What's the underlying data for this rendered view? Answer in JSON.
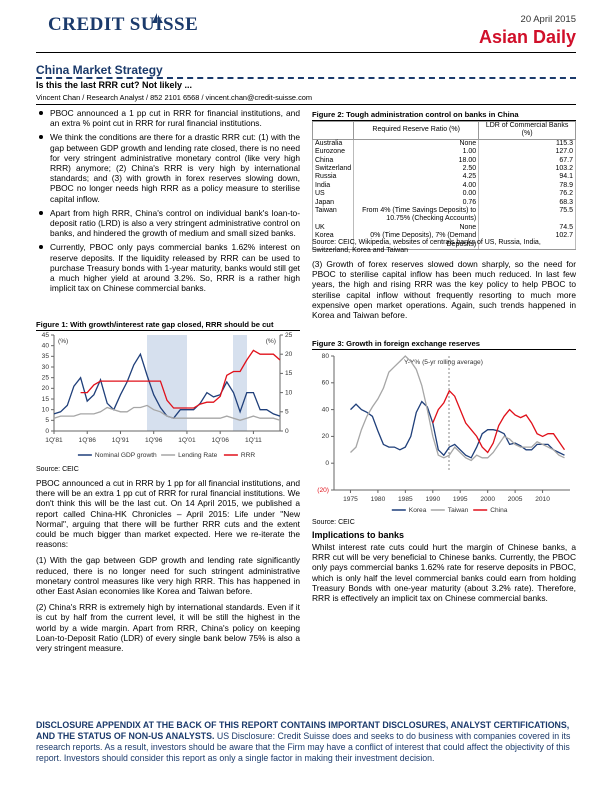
{
  "header": {
    "date": "20 April 2015",
    "brand": "CREDIT SUISSE",
    "publication": "Asian Daily"
  },
  "article": {
    "section": "China Market Strategy",
    "headline": "Is this the last RRR cut? Not likely ...",
    "byline": "Vincent Chan / Research Analyst / 852 2101 6568 / vincent.chan@credit-suisse.com",
    "bullets": [
      "PBOC announced a 1 pp cut in RRR for financial institutions, and an extra % point cut in RRR for rural financial institutions.",
      "We think the conditions are there for a drastic RRR cut: (1) with the gap between GDP growth and lending rate closed, there is no need for very stringent administrative monetary control (like very high RRR) anymore; (2) China's RRR is very high by international standards; and (3) with growth in forex reserves slowing down, PBOC no longer needs high RRR as a policy measure to sterilise capital inflow.",
      "Apart from high RRR, China's control on individual bank's loan-to-deposit ratio (LRD) is also a very stringent administrative control on banks, and hindered the growth of medium and small sized banks.",
      "Currently, PBOC only pays commercial banks 1.62% interest on reserve deposits. If the liquidity released by RRR can be used to purchase Treasury bonds with 1-year maturity, banks would still get a much higher yield at around 3.2%. So, RRR is a rather high implicit tax on Chinese commercial banks."
    ],
    "paragraphs_left": [
      "PBOC announced a cut in RRR by 1 pp for all financial institutions, and there will be an extra 1 pp cut of RRR for rural financial institutions. We don't think this will be the last cut. On 14 April 2015, we published a report called China-HK Chronicles – April 2015: Life under \"New Normal\", arguing that there will be further RRR cuts and the extent could be much bigger than market expected. Here we re-iterate the reasons:",
      "(1) With the gap between GDP growth and lending rate significantly reduced, there is no longer need for such stringent administrative monetary control measures like very high RRR. This has happened in other East Asian economies like Korea and Taiwan before.",
      "(2) China's RRR is extremely high by international standards. Even if it is cut by half from the current level, it will be still the highest in the world by a wide margin. Apart from RRR, China's policy on keeping Loan-to-Deposit Ratio (LDR) of every single bank below 75% is also a very stringent measure."
    ],
    "paragraph_right": "(3) Growth of forex reserves slowed down sharply, so the need for PBOC to sterilise capital inflow has been much reduced. In last few years, the high and rising RRR was the key policy to help PBOC to sterilise capital inflow without frequently resorting to much more expensive open market operations. Again, such trends happened in Korea and Taiwan before.",
    "implications_heading": "Implications to banks",
    "implications_text": "Whilst interest rate cuts could hurt the margin of Chinese banks, a RRR cut will be very beneficial to Chinese banks. Currently, the PBOC only pays commercial banks 1.62% rate for reserve deposits in PBOC, which is only half the level commercial banks could earn from holding Treasury Bonds with one-year maturity (about 3.2% rate). Therefore, RRR is effectively an implicit tax on Chinese commercial banks."
  },
  "figures": [
    {
      "title": "Figure 1: With growth/interest rate gap closed, RRR should be cut",
      "source": "Source: CEIC",
      "chart_data": {
        "type": "line",
        "ylabel": "(%)",
        "y2label": "(%)",
        "categories": [
          "1Q'81",
          null,
          null,
          null,
          null,
          "1Q'86",
          null,
          null,
          null,
          null,
          "1Q'91",
          null,
          null,
          null,
          null,
          "1Q'96",
          null,
          null,
          null,
          null,
          "1Q'01",
          null,
          null,
          null,
          null,
          "1Q'06",
          null,
          null,
          null,
          null,
          "1Q'11",
          null,
          null,
          null,
          null
        ],
        "series": [
          {
            "name": "Nominal GDP growth",
            "color": "#1f3f7a",
            "values": [
              8,
              9,
              12,
              21,
              25,
              14,
              17,
              24,
              13,
              10,
              17,
              23,
              31,
              36,
              26,
              17,
              11,
              7,
              6,
              10,
              10,
              10,
              13,
              18,
              16,
              17,
              23,
              18,
              9,
              18,
              18,
              10,
              10,
              8,
              7
            ]
          },
          {
            "name": "Lending Rate",
            "color": "#a6a6a6",
            "values": [
              6,
              7,
              7,
              7,
              8,
              8,
              8,
              9,
              11,
              10,
              9,
              9,
              11,
              11,
              12,
              10,
              9,
              7,
              6,
              6,
              6,
              6,
              6,
              6,
              6,
              6,
              7,
              6,
              5,
              6,
              7,
              6,
              6,
              6,
              5
            ]
          },
          {
            "name": "RRR",
            "color": "#e0101a",
            "axis": "y2",
            "values": [
              null,
              null,
              null,
              null,
              10,
              10,
              12,
              13,
              13,
              13,
              13,
              13,
              13,
              13,
              13,
              13,
              13,
              8,
              6,
              6,
              6,
              6,
              7,
              7.5,
              7.5,
              9,
              14.5,
              15.5,
              15.5,
              18.5,
              21,
              20,
              20,
              20,
              18.5
            ]
          }
        ],
        "ylim": [
          0,
          45
        ],
        "yticks": [
          0,
          5,
          10,
          15,
          20,
          25,
          30,
          35,
          40,
          45
        ],
        "y2lim": [
          0,
          25
        ],
        "y2ticks": [
          0,
          5,
          10,
          15,
          20,
          25
        ],
        "legend": "bottom"
      }
    },
    {
      "title": "Figure 2: Tough administration control on banks in China",
      "source": "Source: CEIC, Wikipedia, websites of centrals banks of US, Russia, India, Switzerland, Korea and Taiwan",
      "table": {
        "header": [
          "",
          "Required Reserve Ratio (%)",
          "LDR of Commercial Banks (%)"
        ],
        "rows": [
          [
            "Australia",
            "None",
            "115.3"
          ],
          [
            "Eurozone",
            "1.00",
            "127.0"
          ],
          [
            "China",
            "18.00",
            "67.7"
          ],
          [
            "Switzerland",
            "2.50",
            "103.2"
          ],
          [
            "Russia",
            "4.25",
            "94.1"
          ],
          [
            "India",
            "4.00",
            "78.9"
          ],
          [
            "US",
            "0.00",
            "76.2"
          ],
          [
            "Japan",
            "0.76",
            "68.3"
          ],
          [
            "Taiwan",
            "From 4% (Time Savings Deposits) to 10.75% (Checking Accounts)",
            "75.5"
          ],
          [
            "UK",
            "None",
            "74.5"
          ],
          [
            "Korea",
            "0% (Time Deposits), 7% (Demand Deposits)",
            "102.7"
          ]
        ]
      }
    },
    {
      "title": "Figure 3: Growth in foreign exchange reserves",
      "source": "Source: CEIC",
      "chart_data": {
        "type": "line",
        "annotation": "Y-Y% (5-yr rolling average)",
        "x": [
          1975,
          1976,
          1977,
          1978,
          1979,
          1980,
          1981,
          1982,
          1983,
          1984,
          1985,
          1986,
          1987,
          1988,
          1989,
          1990,
          1991,
          1992,
          1993,
          1994,
          1995,
          1996,
          1997,
          1998,
          1999,
          2000,
          2001,
          2002,
          2003,
          2004,
          2005,
          2006,
          2007,
          2008,
          2009,
          2010,
          2011,
          2012,
          2013,
          2014
        ],
        "series": [
          {
            "name": "Korea",
            "color": "#1f3f7a",
            "values": [
              40,
              44,
              40,
              38,
              35,
              24,
              14,
              12,
              12,
              10,
              12,
              20,
              38,
              46,
              42,
              30,
              10,
              6,
              12,
              14,
              10,
              6,
              4,
              12,
              22,
              25,
              25,
              24,
              22,
              14,
              15,
              13,
              10,
              10,
              14,
              14,
              14,
              10,
              8,
              6
            ]
          },
          {
            "name": "Taiwan",
            "color": "#a6a6a6",
            "values": [
              8,
              12,
              25,
              35,
              42,
              48,
              56,
              68,
              72,
              76,
              80,
              76,
              70,
              58,
              40,
              20,
              6,
              4,
              6,
              12,
              8,
              4,
              2,
              6,
              4,
              4,
              8,
              14,
              20,
              18,
              14,
              12,
              12,
              12,
              16,
              14,
              12,
              10,
              6,
              4
            ]
          },
          {
            "name": "China",
            "color": "#e0101a",
            "values": [
              null,
              null,
              null,
              null,
              null,
              null,
              null,
              null,
              null,
              null,
              null,
              null,
              null,
              null,
              null,
              30,
              40,
              45,
              54,
              50,
              40,
              30,
              25,
              20,
              12,
              8,
              15,
              28,
              35,
              40,
              36,
              34,
              36,
              30,
              22,
              20,
              22,
              22,
              16,
              10
            ]
          }
        ],
        "xlim": [
          1972,
          2015
        ],
        "xticks": [
          1975,
          1980,
          1985,
          1990,
          1995,
          2000,
          2005,
          2010
        ],
        "ylim": [
          -20,
          80
        ],
        "yticks": [
          {
            "value": -20,
            "label": "(20)"
          },
          0,
          20,
          40,
          60,
          80
        ],
        "legend": "bottom"
      }
    }
  ],
  "footer": {
    "disclosure_bold": "DISCLOSURE APPENDIX AT THE BACK OF THIS REPORT CONTAINS IMPORTANT DISCLOSURES, ANALYST CERTIFICATIONS, AND THE STATUS OF NON-US ANALYSTS.",
    "disclosure_text": "US Disclosure: Credit Suisse does and seeks to do business with companies covered in its research reports. As a result, investors should be aware that the Firm may have a conflict of interest that could affect the objectivity of this report. Investors should consider this report as only a single factor in making their investment decision."
  }
}
